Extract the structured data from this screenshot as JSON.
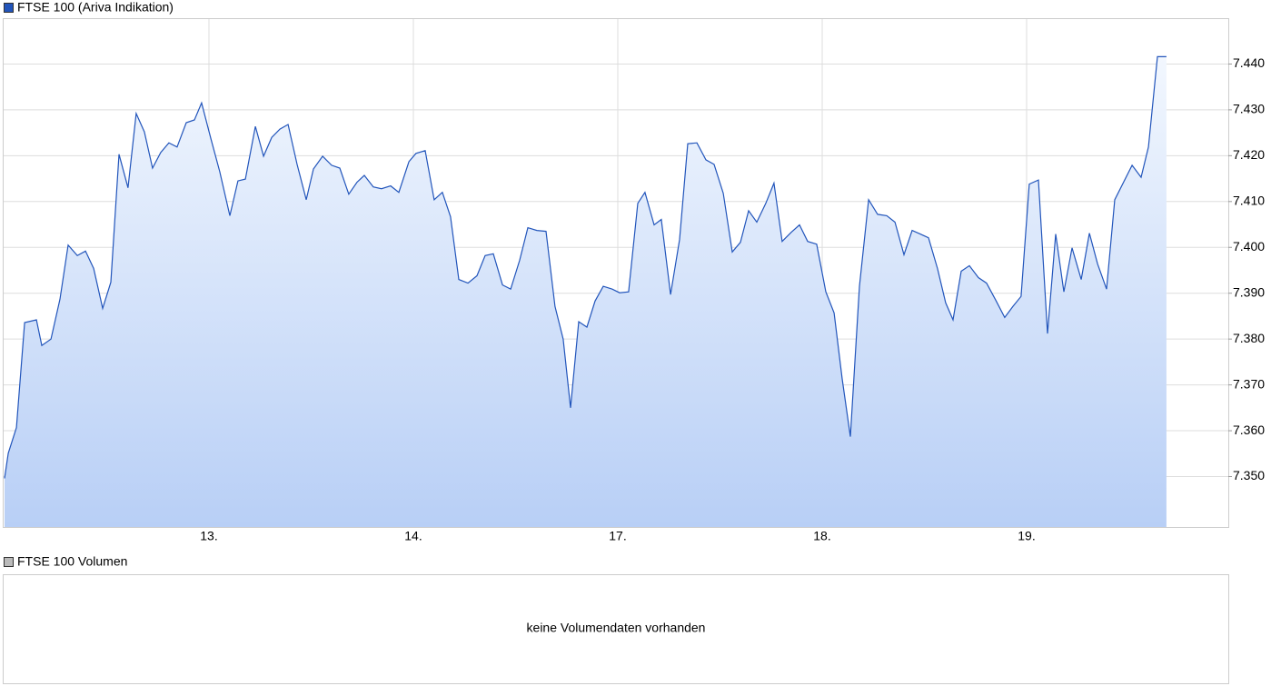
{
  "chart_data": [
    {
      "type": "area",
      "x": [
        0,
        0.018,
        0.058,
        0.098,
        0.156,
        0.182,
        0.227,
        0.271,
        0.311,
        0.356,
        0.396,
        0.436,
        0.48,
        0.52,
        0.56,
        0.604,
        0.644,
        0.684,
        0.724,
        0.764,
        0.804,
        0.844,
        0.889,
        0.929,
        0.964,
        1.009,
        1.053,
        1.102,
        1.142,
        1.178,
        1.227,
        1.267,
        1.307,
        1.347,
        1.387,
        1.431,
        1.476,
        1.511,
        1.556,
        1.6,
        1.64,
        1.684,
        1.724,
        1.76,
        1.804,
        1.844,
        1.889,
        1.929,
        1.978,
        2.013,
        2.058,
        2.102,
        2.142,
        2.182,
        2.222,
        2.267,
        2.311,
        2.351,
        2.391,
        2.436,
        2.476,
        2.52,
        2.56,
        2.604,
        2.649,
        2.693,
        2.733,
        2.769,
        2.809,
        2.849,
        2.889,
        2.929,
        2.973,
        3.009,
        3.053,
        3.098,
        3.133,
        3.178,
        3.213,
        3.258,
        3.302,
        3.342,
        3.387,
        3.431,
        3.471,
        3.516,
        3.56,
        3.6,
        3.64,
        3.68,
        3.724,
        3.764,
        3.804,
        3.849,
        3.889,
        3.929,
        3.973,
        4.018,
        4.058,
        4.098,
        4.138,
        4.182,
        4.227,
        4.271,
        4.316,
        4.356,
        4.4,
        4.44,
        4.48,
        4.52,
        4.564,
        4.604,
        4.64,
        4.68,
        4.72,
        4.764,
        4.804,
        4.849,
        4.893,
        4.933,
        4.973,
        5.013,
        5.058,
        5.102,
        5.142,
        5.182,
        5.222,
        5.267,
        5.307,
        5.347,
        5.391,
        5.431,
        5.516,
        5.56,
        5.596,
        5.64,
        5.684
      ],
      "series": [
        {
          "name": "FTSE 100 (Ariva Indikation)",
          "color": "#2255bb",
          "values": [
            7.3496,
            7.3551,
            7.3607,
            7.3836,
            7.3842,
            7.3786,
            7.38,
            7.3887,
            7.4005,
            7.3982,
            7.3992,
            7.3954,
            7.3867,
            7.3924,
            7.4203,
            7.413,
            7.4292,
            7.4252,
            7.4173,
            7.4207,
            7.4228,
            7.4219,
            7.4272,
            7.4278,
            7.4315,
            7.4238,
            7.4165,
            7.4069,
            7.4145,
            7.4149,
            7.4264,
            7.4199,
            7.424,
            7.4258,
            7.4268,
            7.4181,
            7.4104,
            7.4171,
            7.4199,
            7.4179,
            7.4173,
            7.4116,
            7.4142,
            7.4157,
            7.4132,
            7.4128,
            7.4134,
            7.412,
            7.4187,
            7.4205,
            7.4211,
            7.4104,
            7.412,
            7.4067,
            7.393,
            7.3922,
            7.3938,
            7.3982,
            7.3986,
            7.3918,
            7.3909,
            7.3972,
            7.4043,
            7.4037,
            7.4035,
            7.3871,
            7.38,
            7.365,
            7.3838,
            7.3826,
            7.3883,
            7.3915,
            7.3909,
            7.3901,
            7.3903,
            7.4096,
            7.412,
            7.4049,
            7.4061,
            7.3897,
            7.4017,
            7.4226,
            7.4228,
            7.4191,
            7.4181,
            7.4118,
            7.399,
            7.4011,
            7.408,
            7.4055,
            7.4096,
            7.414,
            7.4013,
            7.4033,
            7.4049,
            7.4013,
            7.4007,
            7.3903,
            7.3857,
            7.3713,
            7.3587,
            7.3915,
            7.4104,
            7.4072,
            7.4069,
            7.4055,
            7.3984,
            7.4037,
            7.4029,
            7.4021,
            7.3954,
            7.3879,
            7.3842,
            7.3948,
            7.396,
            7.3934,
            7.3922,
            7.3885,
            7.3847,
            7.3871,
            7.3893,
            7.4138,
            7.4147,
            7.3812,
            7.4029,
            7.3903,
            7.3999,
            7.393,
            7.4031,
            7.3964,
            7.3909,
            7.4104,
            7.4179,
            7.4153,
            7.4219,
            7.4416,
            7.4416
          ]
        }
      ],
      "xlim": [
        0,
        6
      ],
      "xticks": [
        {
          "value": 1,
          "label": "13."
        },
        {
          "value": 2,
          "label": "14."
        },
        {
          "value": 3,
          "label": "17."
        },
        {
          "value": 4,
          "label": "18."
        },
        {
          "value": 5,
          "label": "19."
        }
      ],
      "ylim": [
        7.339,
        7.45
      ],
      "yticks": [
        {
          "value": 7.35,
          "label": "7.350"
        },
        {
          "value": 7.36,
          "label": "7.360"
        },
        {
          "value": 7.37,
          "label": "7.370"
        },
        {
          "value": 7.38,
          "label": "7.380"
        },
        {
          "value": 7.39,
          "label": "7.390"
        },
        {
          "value": 7.4,
          "label": "7.400"
        },
        {
          "value": 7.41,
          "label": "7.410"
        },
        {
          "value": 7.42,
          "label": "7.420"
        },
        {
          "value": 7.43,
          "label": "7.430"
        },
        {
          "value": 7.44,
          "label": "7.440"
        }
      ],
      "grid": true
    },
    {
      "type": "bar",
      "series": [
        {
          "name": "FTSE 100 Volumen",
          "color": "#bbbbbb",
          "values": []
        }
      ],
      "annotation": "keine Volumendaten vorhanden"
    }
  ]
}
